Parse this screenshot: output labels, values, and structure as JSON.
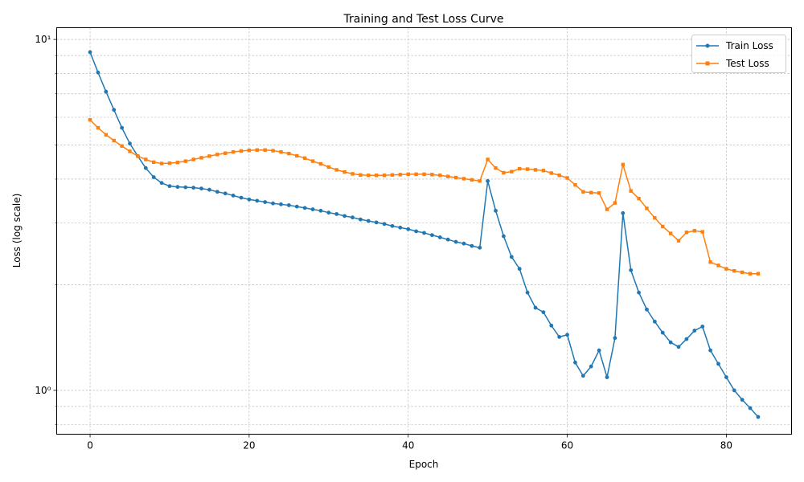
{
  "chart_data": {
    "type": "line",
    "title": "Training and Test Loss Curve",
    "xlabel": "Epoch",
    "ylabel": "Loss (log scale)",
    "yscale": "log",
    "xlim": [
      -4.2,
      88.2
    ],
    "ylim": [
      0.75,
      10.8
    ],
    "xticks": [
      0,
      20,
      40,
      60,
      80
    ],
    "xtick_labels": [
      "0",
      "20",
      "40",
      "60",
      "80"
    ],
    "yticks": [
      1,
      10
    ],
    "ytick_labels": [
      "10⁰",
      "10¹"
    ],
    "y_minor_ticks": [
      0.8,
      0.9,
      2,
      3,
      4,
      5,
      6,
      7,
      8,
      9
    ],
    "grid": true,
    "legend_position": "top-right",
    "series": [
      {
        "name": "Train Loss",
        "color": "#1f77b4",
        "marker": "circle",
        "x": [
          0,
          1,
          2,
          3,
          4,
          5,
          6,
          7,
          8,
          9,
          10,
          11,
          12,
          13,
          14,
          15,
          16,
          17,
          18,
          19,
          20,
          21,
          22,
          23,
          24,
          25,
          26,
          27,
          28,
          29,
          30,
          31,
          32,
          33,
          34,
          35,
          36,
          37,
          38,
          39,
          40,
          41,
          42,
          43,
          44,
          45,
          46,
          47,
          48,
          49,
          50,
          51,
          52,
          53,
          54,
          55,
          56,
          57,
          58,
          59,
          60,
          61,
          62,
          63,
          64,
          65,
          66,
          67,
          68,
          69,
          70,
          71,
          72,
          73,
          74,
          75,
          76,
          77,
          78,
          79,
          80,
          81,
          82,
          83,
          84
        ],
        "values": [
          9.2,
          8.05,
          7.1,
          6.3,
          5.6,
          5.05,
          4.65,
          4.3,
          4.05,
          3.9,
          3.82,
          3.8,
          3.79,
          3.78,
          3.76,
          3.73,
          3.68,
          3.64,
          3.59,
          3.54,
          3.5,
          3.47,
          3.44,
          3.41,
          3.39,
          3.37,
          3.34,
          3.31,
          3.28,
          3.25,
          3.21,
          3.18,
          3.14,
          3.11,
          3.07,
          3.04,
          3.01,
          2.98,
          2.94,
          2.91,
          2.88,
          2.84,
          2.81,
          2.77,
          2.73,
          2.69,
          2.65,
          2.62,
          2.58,
          2.55,
          3.95,
          3.25,
          2.75,
          2.4,
          2.22,
          1.9,
          1.72,
          1.67,
          1.53,
          1.42,
          1.44,
          1.2,
          1.1,
          1.17,
          1.3,
          1.09,
          1.41,
          3.2,
          2.2,
          1.9,
          1.7,
          1.57,
          1.46,
          1.37,
          1.33,
          1.4,
          1.48,
          1.52,
          1.3,
          1.19,
          1.09,
          1.0,
          0.94,
          0.89,
          0.84
        ]
      },
      {
        "name": "Test Loss",
        "color": "#ff7f0e",
        "marker": "square",
        "x": [
          0,
          1,
          2,
          3,
          4,
          5,
          6,
          7,
          8,
          9,
          10,
          11,
          12,
          13,
          14,
          15,
          16,
          17,
          18,
          19,
          20,
          21,
          22,
          23,
          24,
          25,
          26,
          27,
          28,
          29,
          30,
          31,
          32,
          33,
          34,
          35,
          36,
          37,
          38,
          39,
          40,
          41,
          42,
          43,
          44,
          45,
          46,
          47,
          48,
          49,
          50,
          51,
          52,
          53,
          54,
          55,
          56,
          57,
          58,
          59,
          60,
          61,
          62,
          63,
          64,
          65,
          66,
          67,
          68,
          69,
          70,
          71,
          72,
          73,
          74,
          75,
          76,
          77,
          78,
          79,
          80,
          81,
          82,
          83,
          84
        ],
        "values": [
          5.9,
          5.6,
          5.35,
          5.15,
          4.97,
          4.8,
          4.65,
          4.55,
          4.47,
          4.43,
          4.44,
          4.46,
          4.5,
          4.55,
          4.6,
          4.65,
          4.7,
          4.74,
          4.78,
          4.81,
          4.83,
          4.84,
          4.84,
          4.82,
          4.78,
          4.73,
          4.66,
          4.59,
          4.5,
          4.42,
          4.33,
          4.25,
          4.19,
          4.14,
          4.11,
          4.1,
          4.1,
          4.1,
          4.11,
          4.12,
          4.13,
          4.13,
          4.13,
          4.12,
          4.1,
          4.07,
          4.04,
          4.01,
          3.98,
          3.95,
          4.55,
          4.3,
          4.17,
          4.2,
          4.28,
          4.27,
          4.25,
          4.23,
          4.16,
          4.1,
          4.03,
          3.85,
          3.68,
          3.66,
          3.65,
          3.28,
          3.42,
          4.4,
          3.7,
          3.52,
          3.3,
          3.1,
          2.93,
          2.8,
          2.67,
          2.82,
          2.85,
          2.83,
          2.32,
          2.27,
          2.22,
          2.19,
          2.17,
          2.15,
          2.15
        ]
      }
    ]
  }
}
